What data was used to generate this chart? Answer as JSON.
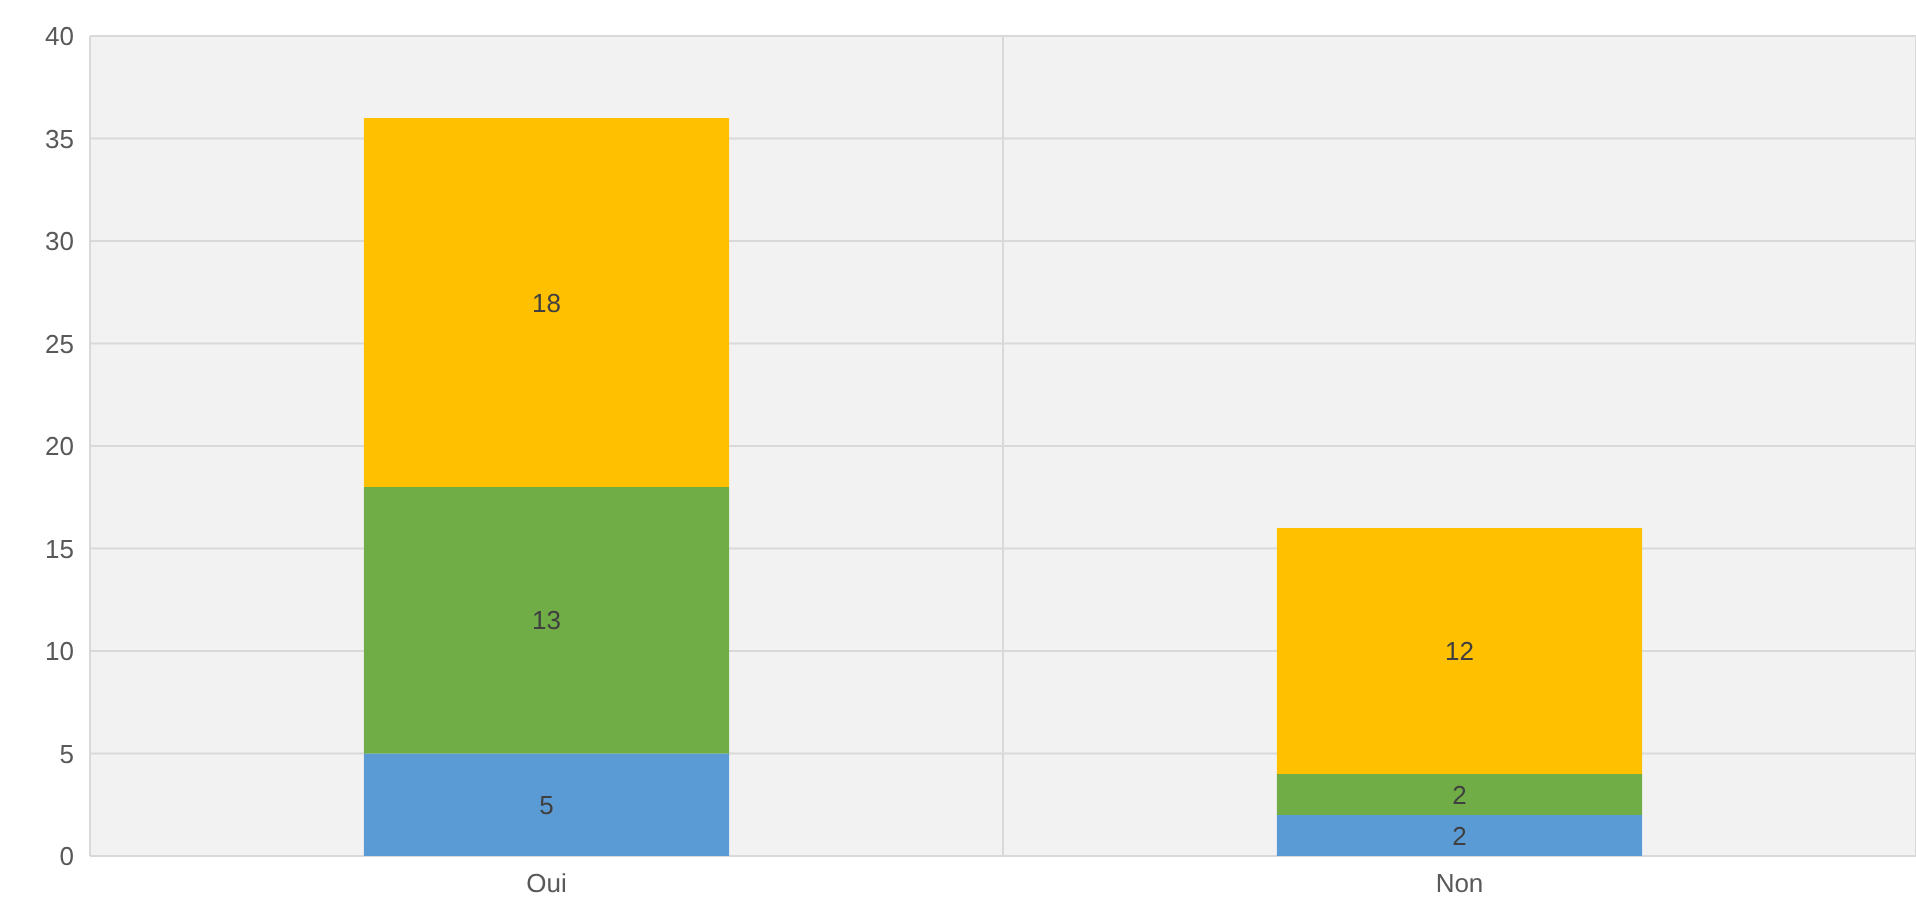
{
  "chart_data": {
    "type": "bar",
    "stacked": true,
    "categories": [
      "Oui",
      "Non"
    ],
    "series": [
      {
        "color": "#5b9bd5",
        "values": [
          5,
          2
        ]
      },
      {
        "color": "#70ad47",
        "values": [
          13,
          2
        ]
      },
      {
        "color": "#ffc000",
        "values": [
          18,
          12
        ]
      }
    ],
    "ylim": [
      0,
      40
    ],
    "yticks": [
      0,
      5,
      10,
      15,
      20,
      25,
      30,
      35,
      40
    ],
    "grid": true,
    "data_labels": true
  }
}
